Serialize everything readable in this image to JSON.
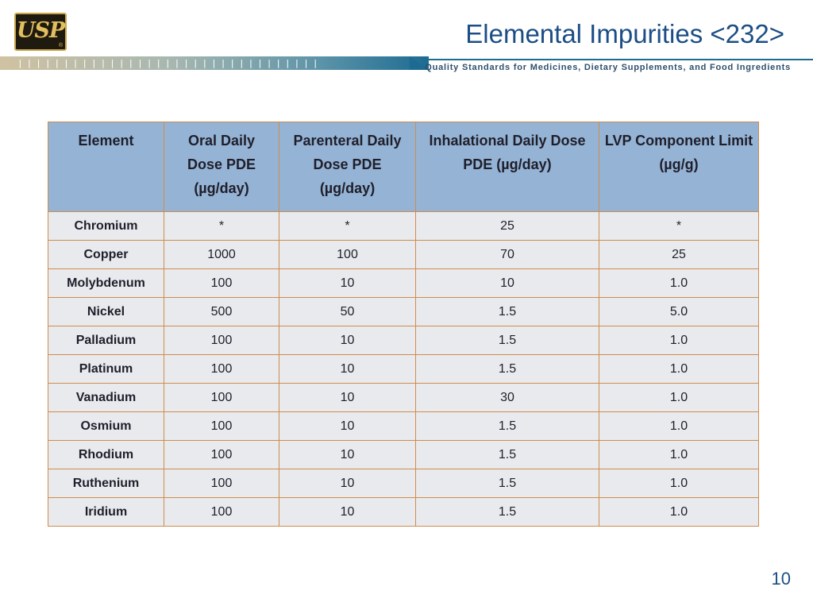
{
  "header": {
    "logo_text": "USP",
    "logo_registered": "®",
    "title": "Elemental Impurities <232>",
    "tagline": "Quality Standards for Medicines, Dietary Supplements, and Food Ingredients"
  },
  "table": {
    "columns": [
      "Element",
      "Oral Daily Dose PDE (µg/day)",
      "Parenteral Daily Dose PDE (µg/day)",
      "Inhalational Daily Dose PDE (µg/day)",
      "LVP Component Limit (µg/g)"
    ],
    "rows": [
      [
        "Chromium",
        "*",
        "*",
        "25",
        "*"
      ],
      [
        "Copper",
        "1000",
        "100",
        "70",
        "25"
      ],
      [
        "Molybdenum",
        "100",
        "10",
        "10",
        "1.0"
      ],
      [
        "Nickel",
        "500",
        "50",
        "1.5",
        "5.0"
      ],
      [
        "Palladium",
        "100",
        "10",
        "1.5",
        "1.0"
      ],
      [
        "Platinum",
        "100",
        "10",
        "1.5",
        "1.0"
      ],
      [
        "Vanadium",
        "100",
        "10",
        "30",
        "1.0"
      ],
      [
        "Osmium",
        "100",
        "10",
        "1.5",
        "1.0"
      ],
      [
        "Rhodium",
        "100",
        "10",
        "1.5",
        "1.0"
      ],
      [
        "Ruthenium",
        "100",
        "10",
        "1.5",
        "1.0"
      ],
      [
        "Iridium",
        "100",
        "10",
        "1.5",
        "1.0"
      ]
    ]
  },
  "footer": {
    "page_number": "10"
  }
}
